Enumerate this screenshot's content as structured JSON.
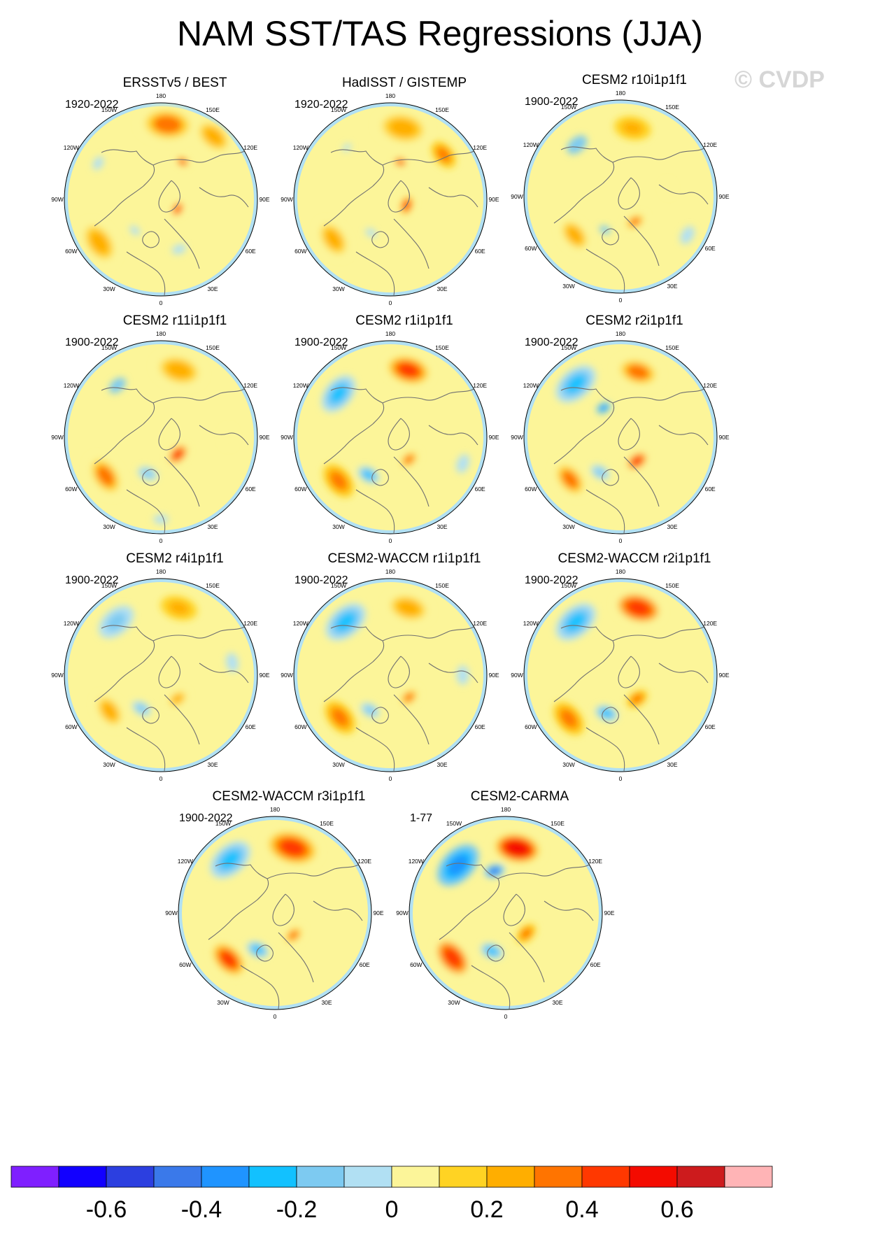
{
  "figure": {
    "title": "NAM SST/TAS Regressions (JJA)",
    "watermark": "© CVDP"
  },
  "chart_data": {
    "type": "polar-map-panels",
    "projection": "north polar stereographic",
    "longitude_labels": [
      {
        "lon": 180,
        "text": "180"
      },
      {
        "lon": 150,
        "text": "150E"
      },
      {
        "lon": 120,
        "text": "120E"
      },
      {
        "lon": 90,
        "text": "90E"
      },
      {
        "lon": 60,
        "text": "60E"
      },
      {
        "lon": 30,
        "text": "30E"
      },
      {
        "lon": 0,
        "text": "0"
      },
      {
        "lon": -30,
        "text": "30W"
      },
      {
        "lon": -60,
        "text": "60W"
      },
      {
        "lon": -90,
        "text": "90W"
      },
      {
        "lon": -120,
        "text": "120W"
      },
      {
        "lon": -150,
        "text": "150W"
      }
    ],
    "panels": [
      {
        "title": "ERSSTv5 / BEST",
        "period": "1920-2022",
        "features": [
          {
            "lon": 175,
            "r": 0.78,
            "size": 0.3,
            "value": 0.3
          },
          {
            "lon": 140,
            "r": 0.85,
            "size": 0.22,
            "value": 0.25
          },
          {
            "lon": -55,
            "r": 0.78,
            "size": 0.25,
            "value": 0.25
          },
          {
            "lon": -40,
            "r": 0.42,
            "size": 0.12,
            "value": -0.1
          },
          {
            "lon": 60,
            "r": 0.2,
            "size": 0.08,
            "value": 0.4
          },
          {
            "lon": 150,
            "r": 0.45,
            "size": 0.06,
            "value": 0.55
          },
          {
            "lon": -120,
            "r": 0.75,
            "size": 0.15,
            "value": -0.1
          },
          {
            "lon": 20,
            "r": 0.55,
            "size": 0.15,
            "value": -0.05
          }
        ]
      },
      {
        "title": "HadISST / GISTEMP",
        "period": "1920-2022",
        "features": [
          {
            "lon": 170,
            "r": 0.75,
            "size": 0.28,
            "value": 0.25
          },
          {
            "lon": 130,
            "r": 0.72,
            "size": 0.16,
            "value": 0.35
          },
          {
            "lon": -55,
            "r": 0.72,
            "size": 0.22,
            "value": 0.25
          },
          {
            "lon": -30,
            "r": 0.4,
            "size": 0.12,
            "value": -0.1
          },
          {
            "lon": 70,
            "r": 0.18,
            "size": 0.1,
            "value": 0.45
          },
          {
            "lon": 165,
            "r": 0.4,
            "size": 0.06,
            "value": 0.55
          },
          {
            "lon": -140,
            "r": 0.7,
            "size": 0.1,
            "value": -0.1
          }
        ]
      },
      {
        "title": "CESM2 r10i1p1f1",
        "period": "1900-2022",
        "features": [
          {
            "lon": -140,
            "r": 0.7,
            "size": 0.24,
            "value": -0.15
          },
          {
            "lon": 170,
            "r": 0.72,
            "size": 0.22,
            "value": 0.2
          },
          {
            "lon": -50,
            "r": 0.62,
            "size": 0.2,
            "value": 0.25
          },
          {
            "lon": -25,
            "r": 0.38,
            "size": 0.12,
            "value": -0.15
          },
          {
            "lon": 30,
            "r": 0.3,
            "size": 0.12,
            "value": 0.3
          },
          {
            "lon": 100,
            "r": 0.5,
            "size": 0.15,
            "value": 0.05
          },
          {
            "lon": 60,
            "r": 0.8,
            "size": 0.2,
            "value": -0.05
          }
        ]
      },
      {
        "title": "CESM2 r11i1p1f1",
        "period": "1900-2022",
        "features": [
          {
            "lon": -140,
            "r": 0.7,
            "size": 0.2,
            "value": -0.15
          },
          {
            "lon": 165,
            "r": 0.72,
            "size": 0.26,
            "value": 0.25
          },
          {
            "lon": -55,
            "r": 0.7,
            "size": 0.24,
            "value": 0.3
          },
          {
            "lon": -20,
            "r": 0.4,
            "size": 0.12,
            "value": -0.2
          },
          {
            "lon": 45,
            "r": 0.25,
            "size": 0.12,
            "value": 0.4
          },
          {
            "lon": 90,
            "r": 0.7,
            "size": 0.2,
            "value": 0.05
          },
          {
            "lon": 0,
            "r": 0.85,
            "size": 0.15,
            "value": -0.05
          }
        ]
      },
      {
        "title": "CESM2 r1i1p1f1",
        "period": "1900-2022",
        "features": [
          {
            "lon": -130,
            "r": 0.7,
            "size": 0.22,
            "value": -0.25
          },
          {
            "lon": 165,
            "r": 0.72,
            "size": 0.22,
            "value": 0.45
          },
          {
            "lon": -50,
            "r": 0.7,
            "size": 0.2,
            "value": 0.35
          },
          {
            "lon": -30,
            "r": 0.45,
            "size": 0.12,
            "value": -0.25
          },
          {
            "lon": 40,
            "r": 0.3,
            "size": 0.12,
            "value": 0.3
          },
          {
            "lon": 70,
            "r": 0.8,
            "size": 0.2,
            "value": -0.05
          }
        ]
      },
      {
        "title": "CESM2 r2i1p1f1",
        "period": "1900-2022",
        "features": [
          {
            "lon": -140,
            "r": 0.72,
            "size": 0.24,
            "value": -0.25
          },
          {
            "lon": 165,
            "r": 0.7,
            "size": 0.24,
            "value": 0.3
          },
          {
            "lon": -50,
            "r": 0.68,
            "size": 0.22,
            "value": 0.3
          },
          {
            "lon": -30,
            "r": 0.42,
            "size": 0.12,
            "value": -0.2
          },
          {
            "lon": 35,
            "r": 0.3,
            "size": 0.12,
            "value": 0.4
          },
          {
            "lon": -150,
            "r": 0.35,
            "size": 0.08,
            "value": -0.35
          }
        ]
      },
      {
        "title": "CESM2 r4i1p1f1",
        "period": "1900-2022",
        "features": [
          {
            "lon": -140,
            "r": 0.72,
            "size": 0.24,
            "value": -0.2
          },
          {
            "lon": 165,
            "r": 0.72,
            "size": 0.22,
            "value": 0.2
          },
          {
            "lon": -55,
            "r": 0.65,
            "size": 0.2,
            "value": 0.25
          },
          {
            "lon": -30,
            "r": 0.4,
            "size": 0.12,
            "value": -0.2
          },
          {
            "lon": 35,
            "r": 0.3,
            "size": 0.12,
            "value": 0.25
          },
          {
            "lon": 100,
            "r": 0.75,
            "size": 0.2,
            "value": -0.05
          }
        ]
      },
      {
        "title": "CESM2-WACCM r1i1p1f1",
        "period": "1900-2022",
        "features": [
          {
            "lon": -140,
            "r": 0.72,
            "size": 0.24,
            "value": -0.25
          },
          {
            "lon": 165,
            "r": 0.72,
            "size": 0.24,
            "value": 0.25
          },
          {
            "lon": -50,
            "r": 0.68,
            "size": 0.2,
            "value": 0.35
          },
          {
            "lon": -30,
            "r": 0.42,
            "size": 0.12,
            "value": -0.2
          },
          {
            "lon": 40,
            "r": 0.3,
            "size": 0.12,
            "value": 0.3
          },
          {
            "lon": 90,
            "r": 0.75,
            "size": 0.2,
            "value": -0.05
          }
        ]
      },
      {
        "title": "CESM2-WACCM r2i1p1f1",
        "period": "1900-2022",
        "features": [
          {
            "lon": -140,
            "r": 0.72,
            "size": 0.24,
            "value": -0.25
          },
          {
            "lon": 165,
            "r": 0.72,
            "size": 0.24,
            "value": 0.4
          },
          {
            "lon": -50,
            "r": 0.7,
            "size": 0.2,
            "value": 0.35
          },
          {
            "lon": -20,
            "r": 0.42,
            "size": 0.12,
            "value": -0.25
          },
          {
            "lon": 35,
            "r": 0.3,
            "size": 0.12,
            "value": 0.35
          }
        ]
      },
      {
        "title": "CESM2-WACCM r3i1p1f1",
        "period": "1900-2022",
        "features": [
          {
            "lon": -140,
            "r": 0.72,
            "size": 0.24,
            "value": -0.25
          },
          {
            "lon": 165,
            "r": 0.7,
            "size": 0.26,
            "value": 0.45
          },
          {
            "lon": -45,
            "r": 0.68,
            "size": 0.2,
            "value": 0.45
          },
          {
            "lon": -25,
            "r": 0.42,
            "size": 0.12,
            "value": -0.3
          },
          {
            "lon": 40,
            "r": 0.3,
            "size": 0.12,
            "value": 0.3
          }
        ]
      },
      {
        "title": "CESM2-CARMA",
        "period": "1-77",
        "features": [
          {
            "lon": -135,
            "r": 0.7,
            "size": 0.26,
            "value": -0.35
          },
          {
            "lon": 170,
            "r": 0.68,
            "size": 0.24,
            "value": 0.5
          },
          {
            "lon": -165,
            "r": 0.45,
            "size": 0.1,
            "value": -0.5
          },
          {
            "lon": -50,
            "r": 0.72,
            "size": 0.22,
            "value": 0.4
          },
          {
            "lon": -20,
            "r": 0.42,
            "size": 0.12,
            "value": -0.3
          },
          {
            "lon": 45,
            "r": 0.3,
            "size": 0.12,
            "value": 0.35
          }
        ]
      }
    ],
    "colorbar": {
      "levels": [
        -0.7,
        -0.6,
        -0.5,
        -0.4,
        -0.3,
        -0.2,
        -0.1,
        0,
        0.1,
        0.2,
        0.3,
        0.4,
        0.5,
        0.6,
        0.7
      ],
      "colors": [
        "#7f1fff",
        "#1200ff",
        "#2c3fe0",
        "#3a79ea",
        "#1f94ff",
        "#12c1ff",
        "#7dcaf1",
        "#b1e0f3",
        "#fcf599",
        "#ffd323",
        "#ffae00",
        "#ff7400",
        "#ff3800",
        "#f40b00",
        "#cd1b1d",
        "#ffb4b6"
      ],
      "tick_values": [
        -0.6,
        -0.4,
        -0.2,
        0,
        0.2,
        0.4,
        0.6
      ],
      "tick_labels": [
        "-0.6",
        "-0.4",
        "-0.2",
        "0",
        "0.2",
        "0.4",
        "0.6"
      ]
    }
  }
}
